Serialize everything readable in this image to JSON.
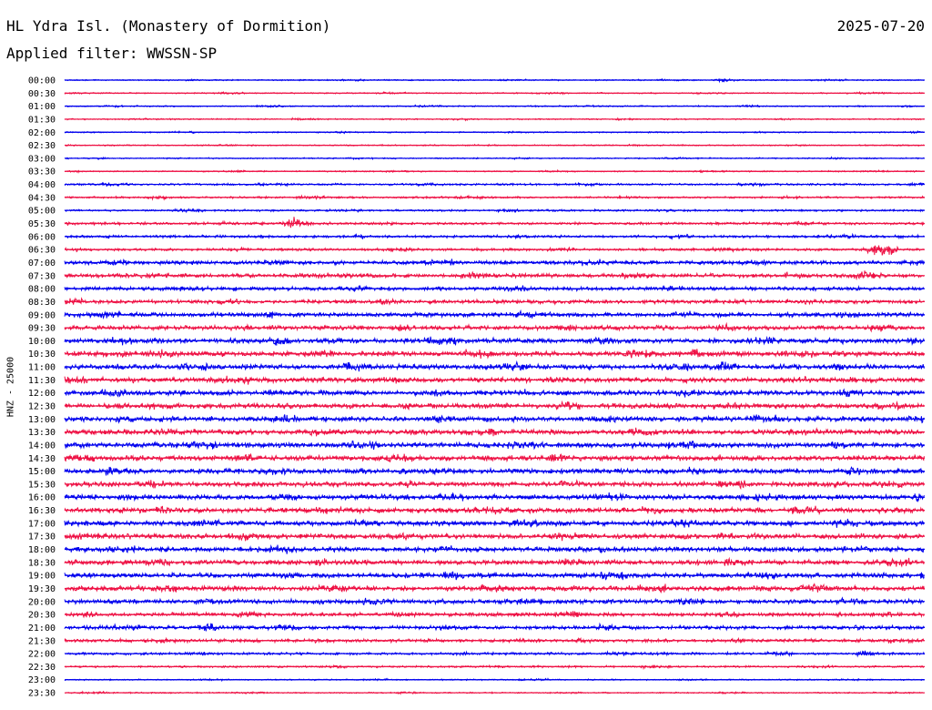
{
  "header": {
    "station": "HL Ydra Isl. (Monastery of Dormition)",
    "date": "2025-07-20",
    "filter": "Applied filter: WWSSN-SP"
  },
  "colors": {
    "trace_a": "#0000ee",
    "trace_b": "#ee1144",
    "text": "#000000",
    "background": "#ffffff"
  },
  "chart_data": {
    "type": "line",
    "title": "HL Ydra Isl. (Monastery of Dormition)",
    "ylabel": "HNZ - 25000",
    "xlabel": "",
    "grid": false,
    "legend": "none",
    "x_range_minutes": [
      0,
      30
    ],
    "row_labels": [
      "00:00",
      "00:30",
      "01:00",
      "01:30",
      "02:00",
      "02:30",
      "03:00",
      "03:30",
      "04:00",
      "04:30",
      "05:00",
      "05:30",
      "06:00",
      "06:30",
      "07:00",
      "07:30",
      "08:00",
      "08:30",
      "09:00",
      "09:30",
      "10:00",
      "10:30",
      "11:00",
      "11:30",
      "12:00",
      "12:30",
      "13:00",
      "13:30",
      "14:00",
      "14:30",
      "15:00",
      "15:30",
      "16:00",
      "16:30",
      "17:00",
      "17:30",
      "18:00",
      "18:30",
      "19:00",
      "19:30",
      "20:00",
      "20:30",
      "21:00",
      "21:30",
      "22:00",
      "22:30",
      "23:00",
      "23:30"
    ],
    "row_colors": [
      "#0000ee",
      "#ee1144"
    ],
    "relative_amplitude": [
      1,
      1,
      1,
      1,
      1,
      1,
      1,
      1,
      1.5,
      1.5,
      1.5,
      2,
      2,
      2,
      3,
      3,
      3,
      3,
      3.5,
      3.5,
      4,
      4,
      4,
      4,
      4,
      4,
      4,
      4,
      4,
      4,
      4,
      4,
      4,
      4,
      4,
      4,
      4,
      4,
      4,
      4,
      3.5,
      3,
      3,
      2.5,
      2,
      1.5,
      1,
      1
    ],
    "events": [
      {
        "row": "00:00",
        "minute": 23.0,
        "amplitude": 3
      },
      {
        "row": "04:00",
        "minute": 1.5,
        "amplitude": 3
      },
      {
        "row": "05:30",
        "minute": 8.0,
        "amplitude": 9
      },
      {
        "row": "06:30",
        "minute": 28.5,
        "amplitude": 12
      },
      {
        "row": "07:30",
        "minute": 28.0,
        "amplitude": 10
      },
      {
        "row": "10:30",
        "minute": 22.0,
        "amplitude": 7
      },
      {
        "row": "11:00",
        "minute": 23.0,
        "amplitude": 8
      },
      {
        "row": "12:00",
        "minute": 13.0,
        "amplitude": 7
      },
      {
        "row": "18:30",
        "minute": 17.5,
        "amplitude": 7
      },
      {
        "row": "20:00",
        "minute": 9.0,
        "amplitude": 6
      },
      {
        "row": "21:00",
        "minute": 5.0,
        "amplitude": 8
      },
      {
        "row": "22:00",
        "minute": 28.0,
        "amplitude": 5
      }
    ]
  }
}
